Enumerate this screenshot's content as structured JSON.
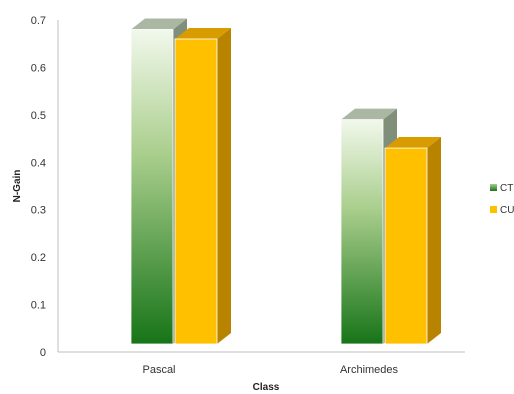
{
  "chart_data": {
    "type": "bar",
    "categories": [
      "Pascal",
      "Archimedes"
    ],
    "series": [
      {
        "name": "CT",
        "values": [
          0.68,
          0.49
        ],
        "color": "#2e8b22"
      },
      {
        "name": "CU",
        "values": [
          0.66,
          0.43
        ],
        "color": "#ffc000"
      }
    ],
    "title": "",
    "xlabel": "Class",
    "ylabel": "N-Gain",
    "ylim": [
      0,
      0.7
    ],
    "yticks": [
      "0",
      "0.1",
      "0.2",
      "0.3",
      "0.4",
      "0.5",
      "0.6",
      "0.7"
    ],
    "grid": false,
    "legend_position": "right"
  }
}
